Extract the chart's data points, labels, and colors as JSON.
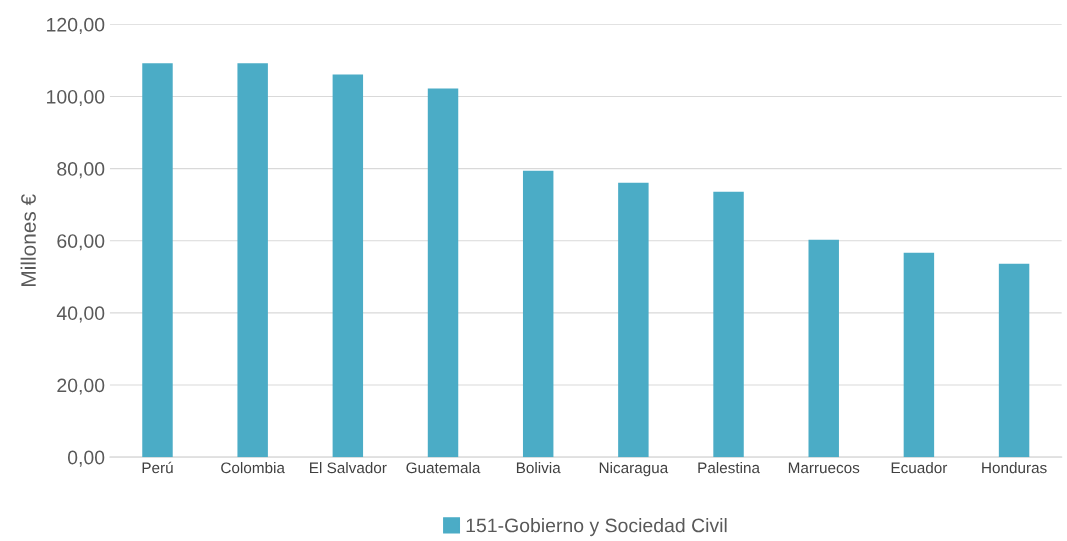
{
  "chart_data": {
    "type": "bar",
    "ylabel": "Millones €",
    "categories": [
      "Perú",
      "Colombia",
      "El Salvador",
      "Guatemala",
      "Bolivia",
      "Nicaragua",
      "Palestina",
      "Marruecos",
      "Ecuador",
      "Honduras"
    ],
    "series": [
      {
        "name": "151-Gobierno y Sociedad Civil",
        "color": "#4bacc6",
        "values": [
          109.2,
          109.2,
          106.1,
          102.2,
          79.4,
          76.1,
          73.6,
          60.3,
          56.7,
          53.6
        ]
      }
    ],
    "ylim": [
      0,
      120
    ],
    "yticks": [
      {
        "value": 0,
        "label": "0,00"
      },
      {
        "value": 20,
        "label": "20,00"
      },
      {
        "value": 40,
        "label": "40,00"
      },
      {
        "value": 60,
        "label": "60,00"
      },
      {
        "value": 80,
        "label": "80,00"
      },
      {
        "value": 100,
        "label": "100,00"
      },
      {
        "value": 120,
        "label": "120,00"
      }
    ],
    "grid": "y",
    "legend": "bottom"
  }
}
